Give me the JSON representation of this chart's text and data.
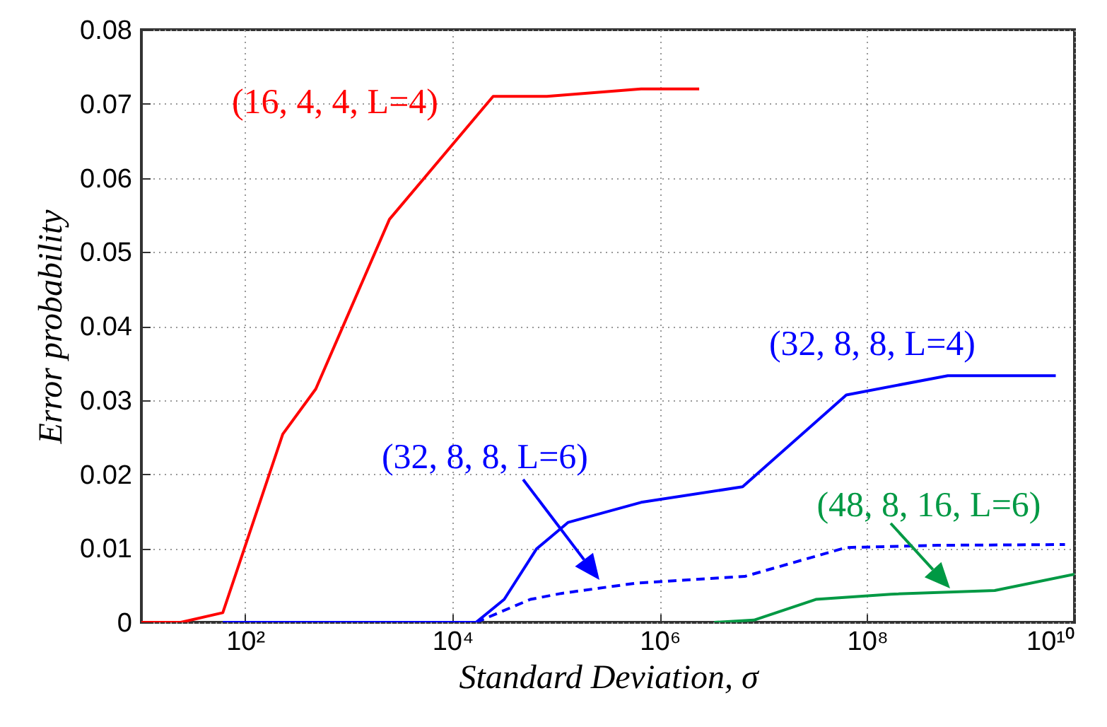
{
  "chart_data": {
    "type": "line",
    "xlabel": "Standard Deviation, σ",
    "ylabel": "Error probability",
    "log": "x",
    "grid": true,
    "line_style": "solid",
    "xlim": [
      10,
      10000000000
    ],
    "ylim": [
      0,
      0.08
    ],
    "xticks": [
      {
        "value": 100,
        "label": "10²"
      },
      {
        "value": 10000,
        "label": "10⁴"
      },
      {
        "value": 1000000,
        "label": "10⁶"
      },
      {
        "value": 100000000,
        "label": "10⁸"
      },
      {
        "value": 10000000000,
        "label": "10¹⁰"
      }
    ],
    "yticks": [
      0,
      0.01,
      0.02,
      0.03,
      0.04,
      0.05,
      0.06,
      0.07,
      0.08
    ],
    "series": [
      {
        "name": "(16, 4, 4, L=4)",
        "color": "#ff0000",
        "x": [
          10,
          24,
          61,
          231,
          481,
          2470,
          24700,
          81500,
          660000,
          2400000
        ],
        "values": [
          0,
          0,
          0.0013,
          0.0254,
          0.0315,
          0.0544,
          0.071,
          0.071,
          0.072,
          0.072
        ]
      },
      {
        "name": "(32, 8, 8, L=4)",
        "color": "#0000ff",
        "x": [
          61,
          16900,
          31600,
          64600,
          131000,
          661000,
          6300000,
          63000000,
          600000000,
          6600000000
        ],
        "values": [
          0,
          0,
          0.0031,
          0.0099,
          0.0135,
          0.0162,
          0.0183,
          0.0307,
          0.0333,
          0.0333
        ]
      },
      {
        "name": "(32, 8, 8, L=6)",
        "color": "#0000ff",
        "line_style": "dashed",
        "x": [
          16900,
          56500,
          112000,
          596000,
          6600000,
          63000000,
          480000000,
          8100000000
        ],
        "values": [
          0,
          0.0031,
          0.0039,
          0.0053,
          0.0062,
          0.0101,
          0.0104,
          0.0105
        ]
      },
      {
        "name": "(48, 8, 16, L=6)",
        "color": "#009944",
        "x": [
          3350000,
          8100000,
          32000000,
          170000000,
          1700000000,
          10000000000
        ],
        "values": [
          0,
          0.0003,
          0.0031,
          0.0038,
          0.0043,
          0.0065
        ]
      }
    ]
  }
}
